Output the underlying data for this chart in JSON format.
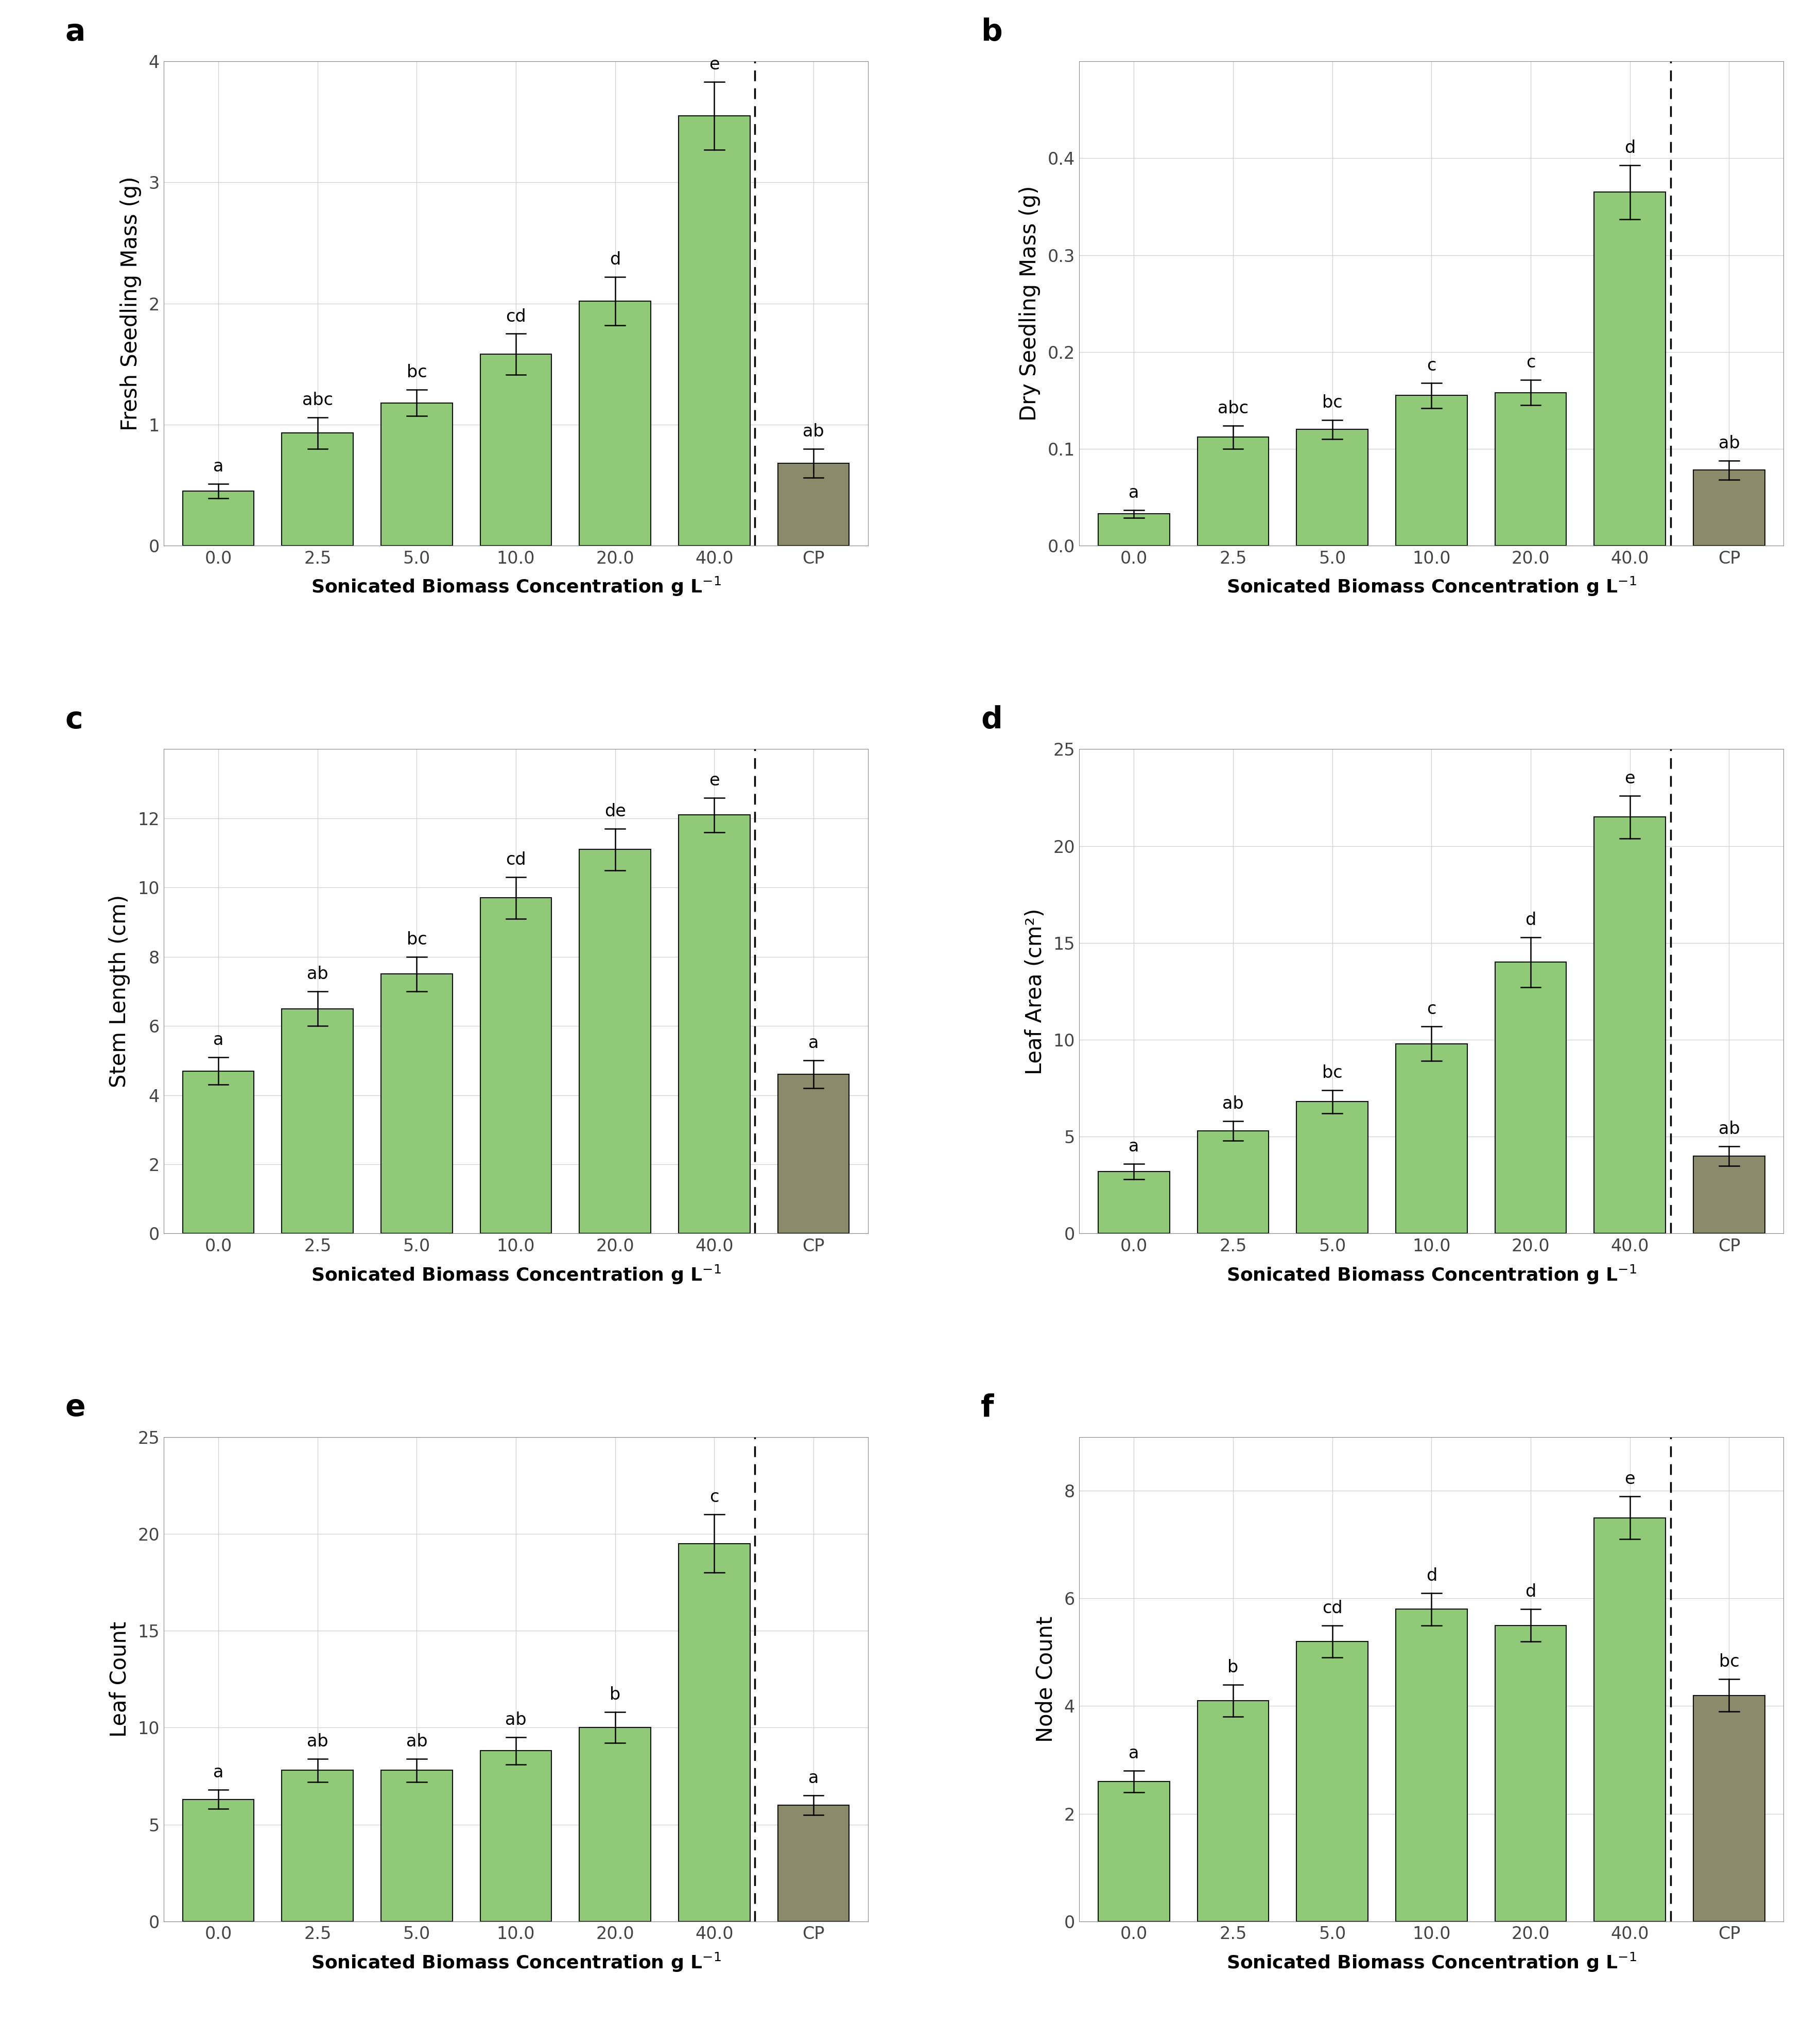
{
  "panels": [
    {
      "label": "a",
      "ylabel": "Fresh Seedling Mass (g)",
      "ylim": [
        0,
        4
      ],
      "yticks": [
        0,
        1,
        2,
        3,
        4
      ],
      "ytick_labels": [
        "0",
        "1",
        "2",
        "3",
        "4"
      ],
      "categories": [
        "0.0",
        "2.5",
        "5.0",
        "10.0",
        "20.0",
        "40.0",
        "CP"
      ],
      "values": [
        0.45,
        0.93,
        1.18,
        1.58,
        2.02,
        3.55,
        0.68
      ],
      "errors": [
        0.06,
        0.13,
        0.11,
        0.17,
        0.2,
        0.28,
        0.12
      ],
      "letters": [
        "a",
        "abc",
        "bc",
        "cd",
        "d",
        "e",
        "ab"
      ]
    },
    {
      "label": "b",
      "ylabel": "Dry Seedling Mass (g)",
      "ylim": [
        0,
        0.5
      ],
      "yticks": [
        0.0,
        0.1,
        0.2,
        0.3,
        0.4
      ],
      "ytick_labels": [
        "0.0",
        "0.1",
        "0.2",
        "0.3",
        "0.4"
      ],
      "categories": [
        "0.0",
        "2.5",
        "5.0",
        "10.0",
        "20.0",
        "40.0",
        "CP"
      ],
      "values": [
        0.033,
        0.112,
        0.12,
        0.155,
        0.158,
        0.365,
        0.078
      ],
      "errors": [
        0.004,
        0.012,
        0.01,
        0.013,
        0.013,
        0.028,
        0.01
      ],
      "letters": [
        "a",
        "abc",
        "bc",
        "c",
        "c",
        "d",
        "ab"
      ]
    },
    {
      "label": "c",
      "ylabel": "Stem Length (cm)",
      "ylim": [
        0,
        14
      ],
      "yticks": [
        0,
        2,
        4,
        6,
        8,
        10,
        12
      ],
      "ytick_labels": [
        "0",
        "2",
        "4",
        "6",
        "8",
        "10",
        "12"
      ],
      "categories": [
        "0.0",
        "2.5",
        "5.0",
        "10.0",
        "20.0",
        "40.0",
        "CP"
      ],
      "values": [
        4.7,
        6.5,
        7.5,
        9.7,
        11.1,
        12.1,
        4.6
      ],
      "errors": [
        0.4,
        0.5,
        0.5,
        0.6,
        0.6,
        0.5,
        0.4
      ],
      "letters": [
        "a",
        "ab",
        "bc",
        "cd",
        "de",
        "e",
        "a"
      ]
    },
    {
      "label": "d",
      "ylabel": "Leaf Area (cm²)",
      "ylim": [
        0,
        25
      ],
      "yticks": [
        0,
        5,
        10,
        15,
        20,
        25
      ],
      "ytick_labels": [
        "0",
        "5",
        "10",
        "15",
        "20",
        "25"
      ],
      "categories": [
        "0.0",
        "2.5",
        "5.0",
        "10.0",
        "20.0",
        "40.0",
        "CP"
      ],
      "values": [
        3.2,
        5.3,
        6.8,
        9.8,
        14.0,
        21.5,
        4.0
      ],
      "errors": [
        0.4,
        0.5,
        0.6,
        0.9,
        1.3,
        1.1,
        0.5
      ],
      "letters": [
        "a",
        "ab",
        "bc",
        "c",
        "d",
        "e",
        "ab"
      ]
    },
    {
      "label": "e",
      "ylabel": "Leaf Count",
      "ylim": [
        0,
        25
      ],
      "yticks": [
        0,
        5,
        10,
        15,
        20,
        25
      ],
      "ytick_labels": [
        "0",
        "5",
        "10",
        "15",
        "20",
        "25"
      ],
      "categories": [
        "0.0",
        "2.5",
        "5.0",
        "10.0",
        "20.0",
        "40.0",
        "CP"
      ],
      "values": [
        6.3,
        7.8,
        7.8,
        8.8,
        10.0,
        19.5,
        6.0
      ],
      "errors": [
        0.5,
        0.6,
        0.6,
        0.7,
        0.8,
        1.5,
        0.5
      ],
      "letters": [
        "a",
        "ab",
        "ab",
        "ab",
        "b",
        "c",
        "a"
      ]
    },
    {
      "label": "f",
      "ylabel": "Node Count",
      "ylim": [
        0,
        9
      ],
      "yticks": [
        0,
        2,
        4,
        6,
        8
      ],
      "ytick_labels": [
        "0",
        "2",
        "4",
        "6",
        "8"
      ],
      "categories": [
        "0.0",
        "2.5",
        "5.0",
        "10.0",
        "20.0",
        "40.0",
        "CP"
      ],
      "values": [
        2.6,
        4.1,
        5.2,
        5.8,
        5.5,
        7.5,
        4.2
      ],
      "errors": [
        0.2,
        0.3,
        0.3,
        0.3,
        0.3,
        0.4,
        0.3
      ],
      "letters": [
        "a",
        "b",
        "cd",
        "d",
        "d",
        "e",
        "bc"
      ]
    }
  ],
  "green_color": "#90C978",
  "gray_color": "#8B8B6B",
  "bar_edge_color": "#111111",
  "background_color": "#ffffff",
  "grid_color": "#d0d0d0",
  "label_fontsize": 30,
  "tick_fontsize": 24,
  "letter_fontsize": 24,
  "panel_label_fontsize": 42,
  "xlabel_fontsize": 26
}
